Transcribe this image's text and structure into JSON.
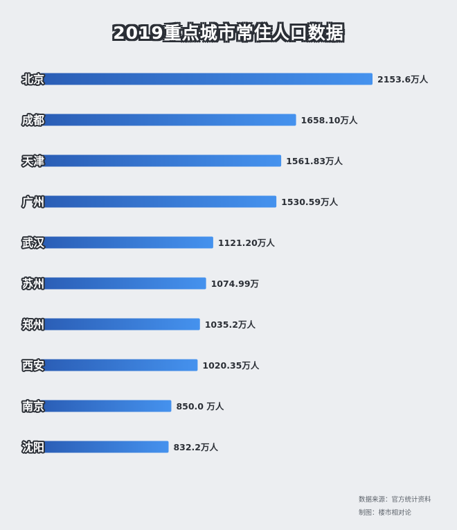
{
  "chart_data": {
    "type": "bar",
    "orientation": "horizontal",
    "title": "2019重点城市常住人口数据",
    "categories": [
      "北京",
      "成都",
      "天津",
      "广州",
      "武汉",
      "苏州",
      "郑州",
      "西安",
      "南京",
      "沈阳"
    ],
    "values": [
      2153.6,
      1658.1,
      1561.83,
      1530.59,
      1121.2,
      1074.99,
      1035.2,
      1020.35,
      850.0,
      832.2
    ],
    "data_labels": [
      "2153.6万人",
      "1658.10万人",
      "1561.83万人",
      "1530.59万人",
      "1121.20万人",
      "1074.99万",
      "1035.2万人",
      "1020.35万人",
      "850.0 万人",
      "832.2万人"
    ],
    "unit": "万人",
    "xlim": [
      0,
      2153.6
    ],
    "grid": false,
    "legend": "none",
    "colors": {
      "bar_start": "#2a5db5",
      "bar_end": "#4592ee",
      "text": "#2b2f36",
      "background": "#eceef1"
    }
  },
  "footer": {
    "source": "数据来源：官方统计资料",
    "maker": "制图：楼市相对论"
  }
}
